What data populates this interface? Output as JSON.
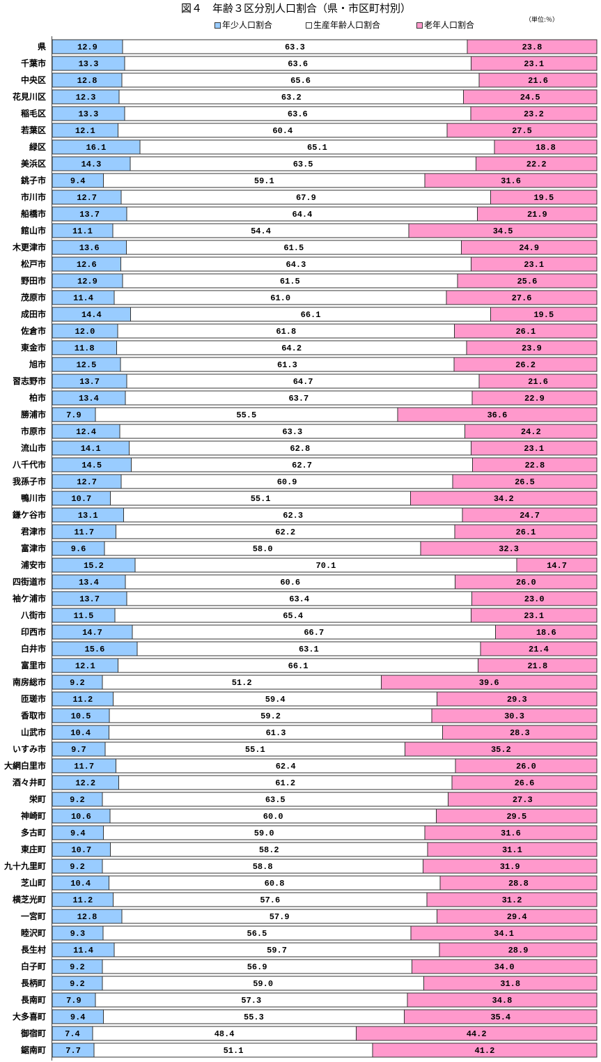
{
  "title": "図４　年齢３区分別人口割合（県・市区町村別）",
  "unit": "（単位:％）",
  "chart_data": {
    "type": "bar",
    "orientation": "horizontal",
    "stacked": "percent",
    "xlim": [
      0,
      100
    ],
    "grid": false,
    "legend_position": "top",
    "categories": [
      "県",
      "千葉市",
      "中央区",
      "花見川区",
      "稲毛区",
      "若葉区",
      "緑区",
      "美浜区",
      "銚子市",
      "市川市",
      "船橋市",
      "館山市",
      "木更津市",
      "松戸市",
      "野田市",
      "茂原市",
      "成田市",
      "佐倉市",
      "東金市",
      "旭市",
      "習志野市",
      "柏市",
      "勝浦市",
      "市原市",
      "流山市",
      "八千代市",
      "我孫子市",
      "鴨川市",
      "鎌ケ谷市",
      "君津市",
      "富津市",
      "浦安市",
      "四街道市",
      "袖ケ浦市",
      "八街市",
      "印西市",
      "白井市",
      "富里市",
      "南房総市",
      "匝瑳市",
      "香取市",
      "山武市",
      "いすみ市",
      "大網白里市",
      "酒々井町",
      "栄町",
      "神崎町",
      "多古町",
      "東庄町",
      "九十九里町",
      "芝山町",
      "横芝光町",
      "一宮町",
      "睦沢町",
      "長生村",
      "白子町",
      "長柄町",
      "長南町",
      "大多喜町",
      "御宿町",
      "鋸南町"
    ],
    "series": [
      {
        "name": "年少人口割合",
        "color": "#99CCFF",
        "values": [
          12.9,
          13.3,
          12.8,
          12.3,
          13.3,
          12.1,
          16.1,
          14.3,
          9.4,
          12.7,
          13.7,
          11.1,
          13.6,
          12.6,
          12.9,
          11.4,
          14.4,
          12.0,
          11.8,
          12.5,
          13.7,
          13.4,
          7.9,
          12.4,
          14.1,
          14.5,
          12.7,
          10.7,
          13.1,
          11.7,
          9.6,
          15.2,
          13.4,
          13.7,
          11.5,
          14.7,
          15.6,
          12.1,
          9.2,
          11.2,
          10.5,
          10.4,
          9.7,
          11.7,
          12.2,
          9.2,
          10.6,
          9.4,
          10.7,
          9.2,
          10.4,
          11.2,
          12.8,
          9.3,
          11.4,
          9.2,
          9.2,
          7.9,
          9.4,
          7.4,
          7.7
        ]
      },
      {
        "name": "生産年齢人口割合",
        "color": "#FFFFFF",
        "values": [
          63.3,
          63.6,
          65.6,
          63.2,
          63.6,
          60.4,
          65.1,
          63.5,
          59.1,
          67.9,
          64.4,
          54.4,
          61.5,
          64.3,
          61.5,
          61.0,
          66.1,
          61.8,
          64.2,
          61.3,
          64.7,
          63.7,
          55.5,
          63.3,
          62.8,
          62.7,
          60.9,
          55.1,
          62.3,
          62.2,
          58.0,
          70.1,
          60.6,
          63.4,
          65.4,
          66.7,
          63.1,
          66.1,
          51.2,
          59.4,
          59.2,
          61.3,
          55.1,
          62.4,
          61.2,
          63.5,
          60.0,
          59.0,
          58.2,
          58.8,
          60.8,
          57.6,
          57.9,
          56.5,
          59.7,
          56.9,
          59.0,
          57.3,
          55.3,
          48.4,
          51.1
        ]
      },
      {
        "name": "老年人口割合",
        "color": "#FF99CC",
        "values": [
          23.8,
          23.1,
          21.6,
          24.5,
          23.2,
          27.5,
          18.8,
          22.2,
          31.6,
          19.5,
          21.9,
          34.5,
          24.9,
          23.1,
          25.6,
          27.6,
          19.5,
          26.1,
          23.9,
          26.2,
          21.6,
          22.9,
          36.6,
          24.2,
          23.1,
          22.8,
          26.5,
          34.2,
          24.7,
          26.1,
          32.3,
          14.7,
          26.0,
          23.0,
          23.1,
          18.6,
          21.4,
          21.8,
          39.6,
          29.3,
          30.3,
          28.3,
          35.2,
          26.0,
          26.6,
          27.3,
          29.5,
          31.6,
          31.1,
          31.9,
          28.8,
          31.2,
          29.4,
          34.1,
          28.9,
          34.0,
          31.8,
          34.8,
          35.4,
          44.2,
          41.2
        ]
      }
    ]
  }
}
